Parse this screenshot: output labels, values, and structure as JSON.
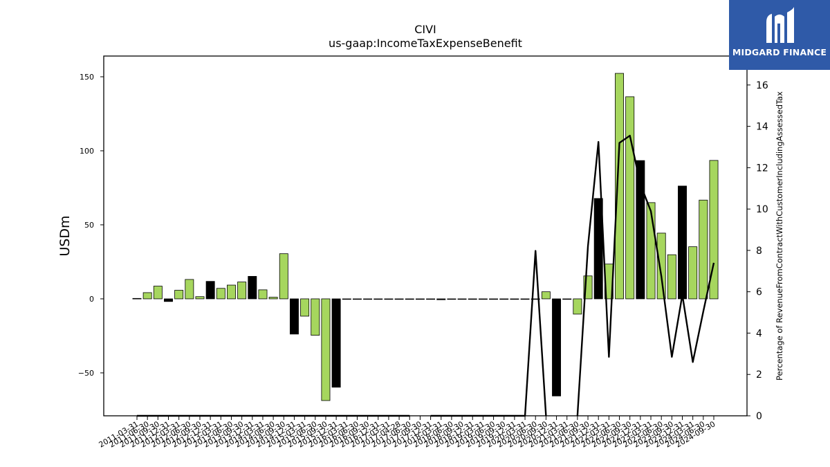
{
  "brand": {
    "name": "MIDGARD FINANCE",
    "bg_color": "#2f5aa8"
  },
  "chart_data": {
    "type": "bar",
    "title": "CIVI",
    "subtitle": "us-gaap:IncomeTaxExpenseBenefit",
    "ylabel": "USDm",
    "y2label": "Percentage of RevenueFromContractWithCustomerIncludingAssessedTax",
    "ylim": [
      -79,
      164
    ],
    "y2lim": [
      0,
      17.4
    ],
    "yticks": [
      -50,
      0,
      50,
      100,
      150
    ],
    "y2ticks": [
      0,
      2,
      4,
      6,
      8,
      10,
      12,
      14,
      16
    ],
    "colors": {
      "light": "#a6d65e",
      "dark": "#000000",
      "line": "#000000"
    },
    "categories": [
      "2011-03-31",
      "2011-06-30",
      "2011-09-30",
      "2011-12-31",
      "2012-03-31",
      "2012-06-30",
      "2012-09-30",
      "2012-12-31",
      "2013-03-31",
      "2013-06-30",
      "2013-09-30",
      "2013-12-31",
      "2014-03-31",
      "2014-06-30",
      "2014-09-30",
      "2014-12-31",
      "2015-03-31",
      "2015-06-30",
      "2015-09-30",
      "2015-12-31",
      "2016-03-31",
      "2016-06-30",
      "2016-09-30",
      "2016-12-31",
      "2017-03-31",
      "2017-04-28",
      "2017-06-30",
      "2017-09-30",
      "2017-12-31",
      "2018-03-31",
      "2018-06-30",
      "2018-09-30",
      "2018-12-31",
      "2019-03-31",
      "2019-06-30",
      "2019-09-30",
      "2019-12-31",
      "2020-03-31",
      "2020-06-30",
      "2020-09-30",
      "2020-12-31",
      "2021-03-31",
      "2021-06-30",
      "2021-09-30",
      "2021-12-31",
      "2022-03-31",
      "2022-06-30",
      "2022-09-30",
      "2022-12-31",
      "2023-03-31",
      "2023-06-30",
      "2023-09-30",
      "2023-12-31",
      "2024-03-31",
      "2024-06-30",
      "2024-09-30"
    ],
    "series": [
      {
        "values": [
          0.3,
          4.2,
          8.6,
          -1.8,
          5.8,
          13.1,
          1.5,
          11.8,
          7.1,
          9.3,
          11.4,
          15.2,
          6.1,
          1.1,
          30.5,
          -23.8,
          -11.7,
          -24.6,
          -68.7,
          -59.7,
          0,
          0,
          0,
          0,
          0,
          0,
          0,
          0,
          0,
          -0.6,
          0,
          0,
          0,
          0,
          0,
          0,
          0,
          0,
          0,
          4.8,
          -65.6,
          0,
          -10.3,
          15.5,
          67.8,
          23.5,
          152.3,
          136.5,
          93.4,
          65.0,
          44.4,
          29.8,
          76.2,
          35.2,
          66.7,
          93.5
        ],
        "bar_colors": [
          "light",
          "light",
          "light",
          "dark",
          "light",
          "light",
          "light",
          "dark",
          "light",
          "light",
          "light",
          "dark",
          "light",
          "light",
          "light",
          "dark",
          "light",
          "light",
          "light",
          "dark",
          "light",
          "light",
          "light",
          "dark",
          "light",
          "light",
          "light",
          "light",
          "light",
          "dark",
          "light",
          "light",
          "light",
          "light",
          "light",
          "light",
          "light",
          "light",
          "light",
          "light",
          "dark",
          "light",
          "light",
          "light",
          "dark",
          "light",
          "light",
          "light",
          "dark",
          "light",
          "light",
          "light",
          "dark",
          "light",
          "light",
          "light"
        ]
      },
      {
        "axis": "right",
        "values": [
          0,
          0,
          0,
          0,
          0,
          0,
          0,
          0,
          0,
          0,
          0,
          0,
          0,
          0,
          0,
          0,
          0,
          0,
          0,
          0,
          0,
          0,
          0,
          0,
          0,
          0,
          0,
          null,
          0,
          0,
          0,
          0,
          0,
          0,
          0,
          0,
          0,
          0,
          7.98,
          0,
          null,
          null,
          0,
          8.2,
          13.25,
          2.85,
          13.2,
          13.55,
          11.2,
          9.9,
          6.75,
          2.85,
          5.85,
          2.6,
          5.05,
          7.4
        ]
      }
    ]
  }
}
